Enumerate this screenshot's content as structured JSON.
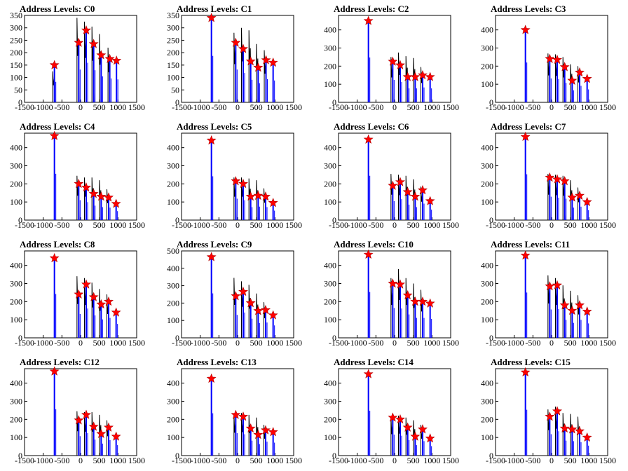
{
  "chart_data": [
    {
      "type": "line",
      "title": "Address Levels: C0",
      "xlim": [
        -1500,
        1500
      ],
      "ylim": [
        0,
        350
      ],
      "yticks": [
        0,
        50,
        100,
        150,
        200,
        250,
        300,
        350
      ],
      "xticks": [
        -1500,
        -1000,
        -500,
        0,
        500,
        1000,
        1500
      ],
      "peaks": [
        {
          "x": -700,
          "y": 150,
          "sub": 125
        },
        {
          "x": -50,
          "y": 240,
          "sub": 340
        },
        {
          "x": 150,
          "y": 290,
          "sub": 325
        },
        {
          "x": 350,
          "y": 235,
          "sub": 305
        },
        {
          "x": 550,
          "y": 190,
          "sub": 275
        },
        {
          "x": 780,
          "y": 175,
          "sub": 220
        },
        {
          "x": 960,
          "y": 168,
          "sub": 0
        }
      ]
    },
    {
      "type": "line",
      "title": "Address Levels: C1",
      "xlim": [
        -1500,
        1500
      ],
      "ylim": [
        0,
        350
      ],
      "yticks": [
        0,
        50,
        100,
        150,
        200,
        250,
        300,
        350
      ],
      "xticks": [
        -1500,
        -1000,
        -500,
        0,
        500,
        1000,
        1500
      ],
      "peaks": [
        {
          "x": -700,
          "y": 340,
          "sub": 0
        },
        {
          "x": -50,
          "y": 240,
          "sub": 280
        },
        {
          "x": 150,
          "y": 215,
          "sub": 300
        },
        {
          "x": 350,
          "y": 165,
          "sub": 290
        },
        {
          "x": 550,
          "y": 140,
          "sub": 235
        },
        {
          "x": 760,
          "y": 170,
          "sub": 210
        },
        {
          "x": 950,
          "y": 160,
          "sub": 0
        }
      ]
    },
    {
      "type": "line",
      "title": "Address Levels: C2",
      "xlim": [
        -1500,
        1500
      ],
      "ylim": [
        0,
        480
      ],
      "yticks": [
        0,
        100,
        200,
        300,
        400
      ],
      "xticks": [
        -1500,
        -1000,
        -500,
        0,
        500,
        1000,
        1500
      ],
      "peaks": [
        {
          "x": -700,
          "y": 450,
          "sub": 0
        },
        {
          "x": -50,
          "y": 225,
          "sub": 250
        },
        {
          "x": 150,
          "y": 205,
          "sub": 275
        },
        {
          "x": 350,
          "y": 140,
          "sub": 255
        },
        {
          "x": 550,
          "y": 140,
          "sub": 245
        },
        {
          "x": 750,
          "y": 150,
          "sub": 195
        },
        {
          "x": 950,
          "y": 140,
          "sub": 0
        }
      ]
    },
    {
      "type": "line",
      "title": "Address Levels: C3",
      "xlim": [
        -1500,
        1500
      ],
      "ylim": [
        0,
        480
      ],
      "yticks": [
        0,
        100,
        200,
        300,
        400
      ],
      "xticks": [
        -1500,
        -1000,
        -500,
        0,
        500,
        1000,
        1500
      ],
      "peaks": [
        {
          "x": -700,
          "y": 400,
          "sub": 0
        },
        {
          "x": -50,
          "y": 240,
          "sub": 270
        },
        {
          "x": 150,
          "y": 235,
          "sub": 265
        },
        {
          "x": 350,
          "y": 195,
          "sub": 250
        },
        {
          "x": 550,
          "y": 120,
          "sub": 210
        },
        {
          "x": 750,
          "y": 165,
          "sub": 200
        },
        {
          "x": 950,
          "y": 130,
          "sub": 0
        }
      ]
    },
    {
      "type": "line",
      "title": "Address Levels: C4",
      "xlim": [
        -1500,
        1500
      ],
      "ylim": [
        0,
        480
      ],
      "yticks": [
        0,
        100,
        200,
        300,
        400
      ],
      "xticks": [
        -1500,
        -1000,
        -500,
        0,
        500,
        1000,
        1500
      ],
      "peaks": [
        {
          "x": -700,
          "y": 465,
          "sub": 0
        },
        {
          "x": -50,
          "y": 200,
          "sub": 245
        },
        {
          "x": 150,
          "y": 180,
          "sub": 235
        },
        {
          "x": 350,
          "y": 145,
          "sub": 235
        },
        {
          "x": 550,
          "y": 130,
          "sub": 220
        },
        {
          "x": 750,
          "y": 125,
          "sub": 170
        },
        {
          "x": 950,
          "y": 90,
          "sub": 0
        }
      ]
    },
    {
      "type": "line",
      "title": "Address Levels: C5",
      "xlim": [
        -1500,
        1500
      ],
      "ylim": [
        0,
        480
      ],
      "yticks": [
        0,
        100,
        200,
        300,
        400
      ],
      "xticks": [
        -1500,
        -1000,
        -500,
        0,
        500,
        1000,
        1500
      ],
      "peaks": [
        {
          "x": -700,
          "y": 440,
          "sub": 0
        },
        {
          "x": -50,
          "y": 215,
          "sub": 235
        },
        {
          "x": 150,
          "y": 200,
          "sub": 235
        },
        {
          "x": 350,
          "y": 130,
          "sub": 230
        },
        {
          "x": 550,
          "y": 135,
          "sub": 220
        },
        {
          "x": 750,
          "y": 130,
          "sub": 175
        },
        {
          "x": 950,
          "y": 95,
          "sub": 0
        }
      ]
    },
    {
      "type": "line",
      "title": "Address Levels: C6",
      "xlim": [
        -1500,
        1500
      ],
      "ylim": [
        0,
        480
      ],
      "yticks": [
        0,
        100,
        200,
        300,
        400
      ],
      "xticks": [
        -1500,
        -1000,
        -500,
        0,
        500,
        1000,
        1500
      ],
      "peaks": [
        {
          "x": -700,
          "y": 445,
          "sub": 0
        },
        {
          "x": -50,
          "y": 190,
          "sub": 255
        },
        {
          "x": 150,
          "y": 210,
          "sub": 250
        },
        {
          "x": 350,
          "y": 155,
          "sub": 245
        },
        {
          "x": 550,
          "y": 130,
          "sub": 225
        },
        {
          "x": 750,
          "y": 165,
          "sub": 185
        },
        {
          "x": 950,
          "y": 105,
          "sub": 0
        }
      ]
    },
    {
      "type": "line",
      "title": "Address Levels: C7",
      "xlim": [
        -1500,
        1500
      ],
      "ylim": [
        0,
        480
      ],
      "yticks": [
        0,
        100,
        200,
        300,
        400
      ],
      "xticks": [
        -1500,
        -1000,
        -500,
        0,
        500,
        1000,
        1500
      ],
      "peaks": [
        {
          "x": -700,
          "y": 460,
          "sub": 0
        },
        {
          "x": -50,
          "y": 235,
          "sub": 255
        },
        {
          "x": 150,
          "y": 225,
          "sub": 250
        },
        {
          "x": 350,
          "y": 215,
          "sub": 245
        },
        {
          "x": 550,
          "y": 125,
          "sub": 220
        },
        {
          "x": 750,
          "y": 135,
          "sub": 180
        },
        {
          "x": 950,
          "y": 100,
          "sub": 0
        }
      ]
    },
    {
      "type": "line",
      "title": "Address Levels: C8",
      "xlim": [
        -1500,
        1500
      ],
      "ylim": [
        0,
        480
      ],
      "yticks": [
        0,
        100,
        200,
        300,
        400
      ],
      "xticks": [
        -1500,
        -1000,
        -500,
        0,
        500,
        1000,
        1500
      ],
      "peaks": [
        {
          "x": -700,
          "y": 440,
          "sub": 0
        },
        {
          "x": -50,
          "y": 240,
          "sub": 340
        },
        {
          "x": 150,
          "y": 295,
          "sub": 330
        },
        {
          "x": 350,
          "y": 225,
          "sub": 305
        },
        {
          "x": 550,
          "y": 185,
          "sub": 270
        },
        {
          "x": 750,
          "y": 200,
          "sub": 240
        },
        {
          "x": 950,
          "y": 140,
          "sub": 0
        }
      ]
    },
    {
      "type": "line",
      "title": "Address Levels: C9",
      "xlim": [
        -1500,
        1500
      ],
      "ylim": [
        0,
        500
      ],
      "yticks": [
        0,
        100,
        200,
        300,
        400,
        500
      ],
      "xticks": [
        -1500,
        -1000,
        -500,
        0,
        500,
        1000,
        1500
      ],
      "peaks": [
        {
          "x": -700,
          "y": 465,
          "sub": 0
        },
        {
          "x": -50,
          "y": 240,
          "sub": 345
        },
        {
          "x": 150,
          "y": 265,
          "sub": 325
        },
        {
          "x": 350,
          "y": 200,
          "sub": 305
        },
        {
          "x": 550,
          "y": 155,
          "sub": 255
        },
        {
          "x": 750,
          "y": 160,
          "sub": 205
        },
        {
          "x": 950,
          "y": 130,
          "sub": 0
        }
      ]
    },
    {
      "type": "line",
      "title": "Address Levels: C10",
      "xlim": [
        -1500,
        1500
      ],
      "ylim": [
        0,
        480
      ],
      "yticks": [
        0,
        100,
        200,
        300,
        400
      ],
      "xticks": [
        -1500,
        -1000,
        -500,
        0,
        500,
        1000,
        1500
      ],
      "peaks": [
        {
          "x": -700,
          "y": 460,
          "sub": 0
        },
        {
          "x": -50,
          "y": 300,
          "sub": 330
        },
        {
          "x": 150,
          "y": 295,
          "sub": 380
        },
        {
          "x": 350,
          "y": 235,
          "sub": 330
        },
        {
          "x": 550,
          "y": 200,
          "sub": 300
        },
        {
          "x": 750,
          "y": 200,
          "sub": 265
        },
        {
          "x": 950,
          "y": 190,
          "sub": 0
        }
      ]
    },
    {
      "type": "line",
      "title": "Address Levels: C11",
      "xlim": [
        -1500,
        1500
      ],
      "ylim": [
        0,
        480
      ],
      "yticks": [
        0,
        100,
        200,
        300,
        400
      ],
      "xticks": [
        -1500,
        -1000,
        -500,
        0,
        500,
        1000,
        1500
      ],
      "peaks": [
        {
          "x": -700,
          "y": 455,
          "sub": 0
        },
        {
          "x": -50,
          "y": 285,
          "sub": 345
        },
        {
          "x": 150,
          "y": 290,
          "sub": 330
        },
        {
          "x": 350,
          "y": 180,
          "sub": 290
        },
        {
          "x": 550,
          "y": 150,
          "sub": 260
        },
        {
          "x": 750,
          "y": 180,
          "sub": 235
        },
        {
          "x": 950,
          "y": 145,
          "sub": 0
        }
      ]
    },
    {
      "type": "line",
      "title": "Address Levels: C12",
      "xlim": [
        -1500,
        1500
      ],
      "ylim": [
        0,
        480
      ],
      "yticks": [
        0,
        100,
        200,
        300,
        400
      ],
      "xticks": [
        -1500,
        -1000,
        -500,
        0,
        500,
        1000,
        1500
      ],
      "peaks": [
        {
          "x": -700,
          "y": 465,
          "sub": 0
        },
        {
          "x": -50,
          "y": 195,
          "sub": 245
        },
        {
          "x": 150,
          "y": 225,
          "sub": 240
        },
        {
          "x": 350,
          "y": 160,
          "sub": 240
        },
        {
          "x": 550,
          "y": 120,
          "sub": 225
        },
        {
          "x": 750,
          "y": 155,
          "sub": 195
        },
        {
          "x": 950,
          "y": 105,
          "sub": 0
        }
      ]
    },
    {
      "type": "line",
      "title": "Address Levels: C13",
      "xlim": [
        -1500,
        1500
      ],
      "ylim": [
        0,
        480
      ],
      "yticks": [
        0,
        100,
        200,
        300,
        400
      ],
      "xticks": [
        -1500,
        -1000,
        -500,
        0,
        500,
        1000,
        1500
      ],
      "peaks": [
        {
          "x": -700,
          "y": 425,
          "sub": 0
        },
        {
          "x": -50,
          "y": 225,
          "sub": 230
        },
        {
          "x": 150,
          "y": 215,
          "sub": 235
        },
        {
          "x": 350,
          "y": 150,
          "sub": 225
        },
        {
          "x": 550,
          "y": 115,
          "sub": 210
        },
        {
          "x": 750,
          "y": 140,
          "sub": 170
        },
        {
          "x": 950,
          "y": 130,
          "sub": 0
        }
      ]
    },
    {
      "type": "line",
      "title": "Address Levels: C14",
      "xlim": [
        -1500,
        1500
      ],
      "ylim": [
        0,
        480
      ],
      "yticks": [
        0,
        100,
        200,
        300,
        400
      ],
      "xticks": [
        -1500,
        -1000,
        -500,
        0,
        500,
        1000,
        1500
      ],
      "peaks": [
        {
          "x": -700,
          "y": 450,
          "sub": 0
        },
        {
          "x": -50,
          "y": 210,
          "sub": 215
        },
        {
          "x": 150,
          "y": 200,
          "sub": 220
        },
        {
          "x": 350,
          "y": 155,
          "sub": 210
        },
        {
          "x": 550,
          "y": 105,
          "sub": 195
        },
        {
          "x": 750,
          "y": 145,
          "sub": 170
        },
        {
          "x": 950,
          "y": 95,
          "sub": 0
        }
      ]
    },
    {
      "type": "line",
      "title": "Address Levels: C15",
      "xlim": [
        -1500,
        1500
      ],
      "ylim": [
        0,
        480
      ],
      "yticks": [
        0,
        100,
        200,
        300,
        400
      ],
      "xticks": [
        -1500,
        -1000,
        -500,
        0,
        500,
        1000,
        1500
      ],
      "peaks": [
        {
          "x": -700,
          "y": 460,
          "sub": 0
        },
        {
          "x": -50,
          "y": 215,
          "sub": 255
        },
        {
          "x": 150,
          "y": 245,
          "sub": 270
        },
        {
          "x": 350,
          "y": 150,
          "sub": 235
        },
        {
          "x": 550,
          "y": 145,
          "sub": 230
        },
        {
          "x": 750,
          "y": 135,
          "sub": 215
        },
        {
          "x": 950,
          "y": 100,
          "sub": 0
        }
      ]
    }
  ],
  "colors": {
    "histogram": "#0000ff",
    "overlay": "#000000",
    "marker": "#ff0000",
    "marker_edge": "#b00000",
    "axis": "#000000"
  }
}
